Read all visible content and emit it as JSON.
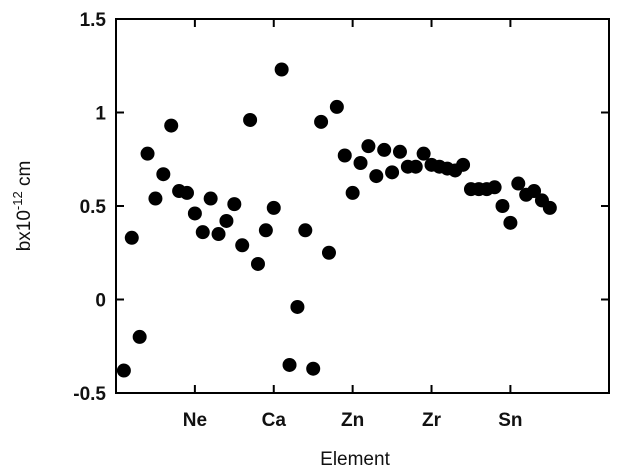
{
  "chart_data": {
    "type": "scatter",
    "title": "",
    "xlabel": "Element",
    "ylabel": {
      "base": "bx10",
      "sup": "-12",
      "unit": " cm"
    },
    "ylim": [
      -0.5,
      1.5
    ],
    "y_ticks": [
      -0.5,
      0,
      0.5,
      1,
      1.5
    ],
    "y_tick_labels": [
      "-0.5",
      "0",
      "0.5",
      "1",
      "1.5"
    ],
    "x_ticks": [
      {
        "label": "Ne",
        "z": 10
      },
      {
        "label": "Ca",
        "z": 20
      },
      {
        "label": "Zn",
        "z": 30
      },
      {
        "label": "Zr",
        "z": 40
      },
      {
        "label": "Sn",
        "z": 50
      }
    ],
    "xlim": [
      0,
      62.5
    ],
    "grid": false,
    "legend": "none",
    "marker_color": "#000000",
    "points": [
      {
        "z": 1,
        "b": -0.38
      },
      {
        "z": 2,
        "b": 0.33
      },
      {
        "z": 3,
        "b": -0.2
      },
      {
        "z": 4,
        "b": 0.78
      },
      {
        "z": 5,
        "b": 0.54
      },
      {
        "z": 6,
        "b": 0.67
      },
      {
        "z": 7,
        "b": 0.93
      },
      {
        "z": 8,
        "b": 0.58
      },
      {
        "z": 9,
        "b": 0.57
      },
      {
        "z": 10,
        "b": 0.46
      },
      {
        "z": 11,
        "b": 0.36
      },
      {
        "z": 12,
        "b": 0.54
      },
      {
        "z": 13,
        "b": 0.35
      },
      {
        "z": 14,
        "b": 0.42
      },
      {
        "z": 15,
        "b": 0.51
      },
      {
        "z": 16,
        "b": 0.29
      },
      {
        "z": 17,
        "b": 0.96
      },
      {
        "z": 18,
        "b": 0.19
      },
      {
        "z": 19,
        "b": 0.37
      },
      {
        "z": 20,
        "b": 0.49
      },
      {
        "z": 21,
        "b": 1.23
      },
      {
        "z": 22,
        "b": -0.35
      },
      {
        "z": 23,
        "b": -0.04
      },
      {
        "z": 24,
        "b": 0.37
      },
      {
        "z": 25,
        "b": -0.37
      },
      {
        "z": 26,
        "b": 0.95
      },
      {
        "z": 27,
        "b": 0.25
      },
      {
        "z": 28,
        "b": 1.03
      },
      {
        "z": 29,
        "b": 0.77
      },
      {
        "z": 30,
        "b": 0.57
      },
      {
        "z": 31,
        "b": 0.73
      },
      {
        "z": 32,
        "b": 0.82
      },
      {
        "z": 33,
        "b": 0.66
      },
      {
        "z": 34,
        "b": 0.8
      },
      {
        "z": 35,
        "b": 0.68
      },
      {
        "z": 36,
        "b": 0.79
      },
      {
        "z": 37,
        "b": 0.71
      },
      {
        "z": 38,
        "b": 0.71
      },
      {
        "z": 39,
        "b": 0.78
      },
      {
        "z": 40,
        "b": 0.72
      },
      {
        "z": 41,
        "b": 0.71
      },
      {
        "z": 42,
        "b": 0.7
      },
      {
        "z": 43,
        "b": 0.69
      },
      {
        "z": 44,
        "b": 0.72
      },
      {
        "z": 45,
        "b": 0.59
      },
      {
        "z": 46,
        "b": 0.59
      },
      {
        "z": 47,
        "b": 0.59
      },
      {
        "z": 48,
        "b": 0.6
      },
      {
        "z": 49,
        "b": 0.5
      },
      {
        "z": 50,
        "b": 0.41
      },
      {
        "z": 51,
        "b": 0.62
      },
      {
        "z": 52,
        "b": 0.56
      },
      {
        "z": 53,
        "b": 0.58
      },
      {
        "z": 54,
        "b": 0.53
      },
      {
        "z": 55,
        "b": 0.49
      }
    ]
  }
}
